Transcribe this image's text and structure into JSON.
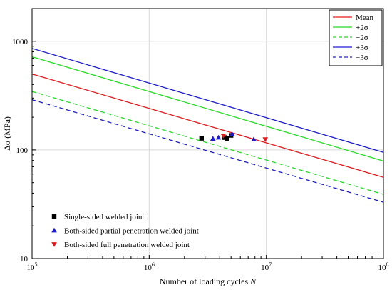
{
  "chart_data": {
    "type": "line",
    "xscale": "log",
    "yscale": "log",
    "xlim": [
      100000,
      100000000
    ],
    "ylim": [
      10,
      2000
    ],
    "xlabel": "Number of loading cycles N",
    "ylabel": "Δσ (MPa)",
    "grid": true,
    "x_ticks": [
      100000,
      1000000,
      10000000,
      100000000
    ],
    "x_tick_labels": [
      {
        "base": "10",
        "exp": "5"
      },
      {
        "base": "10",
        "exp": "6"
      },
      {
        "base": "10",
        "exp": "7"
      },
      {
        "base": "10",
        "exp": "8"
      }
    ],
    "y_ticks": [
      10,
      100,
      1000
    ],
    "y_tick_labels": [
      "10",
      "100",
      "1000"
    ],
    "lines_legend_position": "top-right",
    "points_legend_position": "bottom-left",
    "lines": [
      {
        "name": "Mean",
        "color": "#e41a1c",
        "dash": "solid",
        "points": [
          [
            100000,
            500
          ],
          [
            100000000,
            56
          ]
        ]
      },
      {
        "name": "+2σ",
        "color": "#22dd22",
        "dash": "solid",
        "points": [
          [
            100000,
            720
          ],
          [
            100000000,
            79
          ]
        ]
      },
      {
        "name": "−2σ",
        "color": "#22dd22",
        "dash": "dashed",
        "points": [
          [
            100000,
            345
          ],
          [
            100000000,
            39
          ]
        ]
      },
      {
        "name": "+3σ",
        "color": "#1c1cd0",
        "dash": "solid",
        "points": [
          [
            100000,
            860
          ],
          [
            100000000,
            95
          ]
        ]
      },
      {
        "name": "−3σ",
        "color": "#1c1cd0",
        "dash": "dashed",
        "points": [
          [
            100000,
            290
          ],
          [
            100000000,
            33
          ]
        ]
      }
    ],
    "scatter": [
      {
        "name": "Single-sided welded joint",
        "marker": "square",
        "color": "#000000",
        "points": [
          [
            2800000,
            128
          ],
          [
            4400000,
            130
          ],
          [
            4600000,
            127
          ],
          [
            5000000,
            136
          ]
        ]
      },
      {
        "name": "Both-sided  partial penetration welded joint",
        "marker": "triangle-up",
        "color": "#1c1cd0",
        "points": [
          [
            3500000,
            127
          ],
          [
            3900000,
            130
          ],
          [
            5100000,
            140
          ],
          [
            7800000,
            125
          ]
        ]
      },
      {
        "name": "Both-sided  full penetration welded joint",
        "marker": "triangle-down",
        "color": "#e41a1c",
        "points": [
          [
            4300000,
            135
          ],
          [
            9800000,
            125
          ]
        ]
      }
    ]
  }
}
